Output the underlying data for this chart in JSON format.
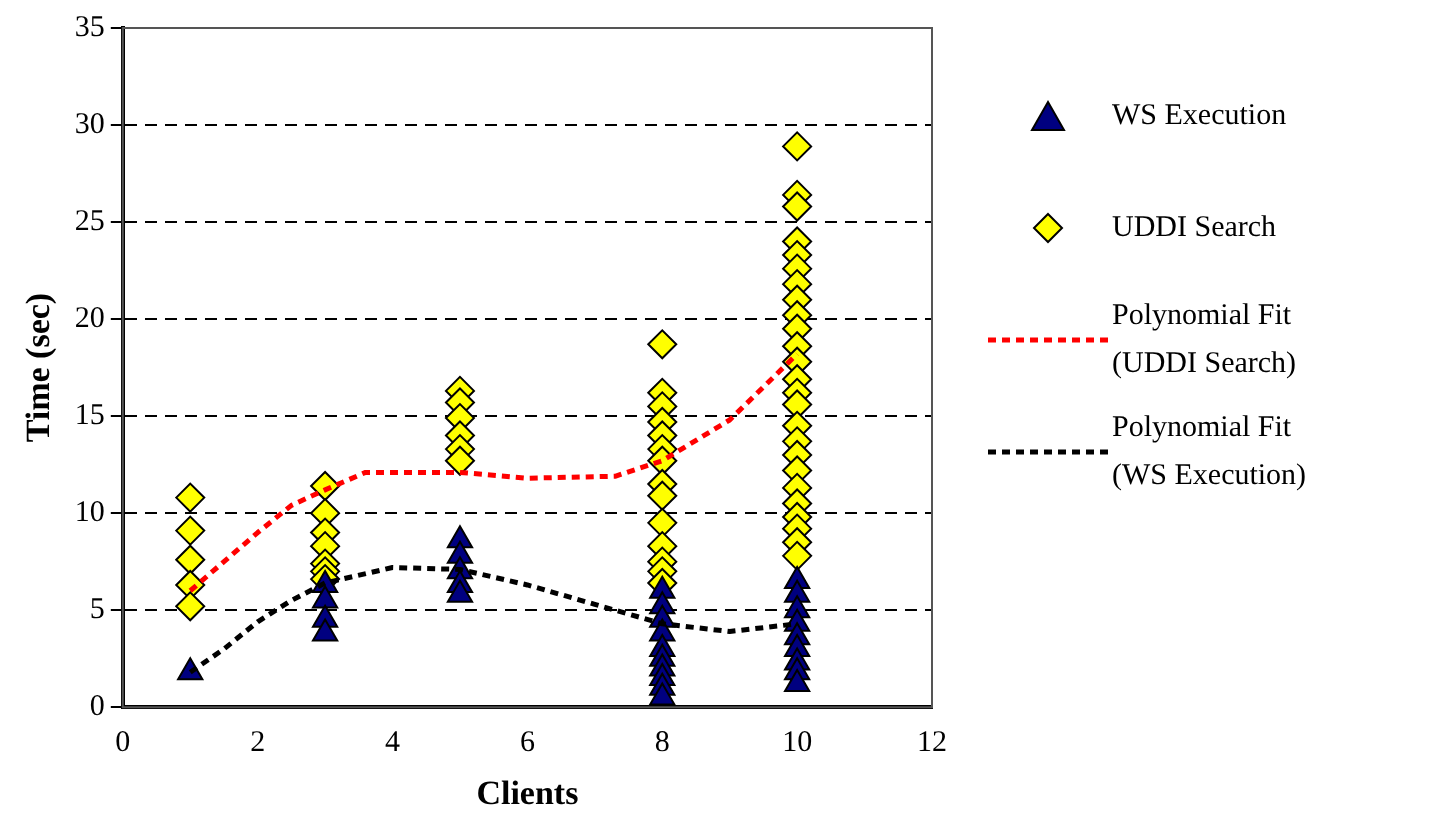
{
  "chart_data": {
    "type": "scatter",
    "xlabel": "Clients",
    "ylabel": "Time (sec)",
    "xlim": [
      0,
      12
    ],
    "xticks": [
      0,
      2,
      4,
      6,
      8,
      10,
      12
    ],
    "ylim": [
      0,
      35
    ],
    "yticks": [
      0,
      5,
      10,
      15,
      20,
      25,
      30,
      35
    ],
    "grid": "y",
    "legend": "right",
    "series": [
      {
        "name": "WS Execution",
        "color": "#000080",
        "marker": "triangle",
        "x": [
          1,
          3,
          3,
          3,
          3,
          5,
          5,
          5,
          5,
          5,
          8,
          8,
          8,
          8,
          8,
          8,
          8,
          8,
          8,
          8,
          10,
          10,
          10,
          10,
          10,
          10,
          10,
          10,
          10
        ],
        "values": [
          1.8,
          6.3,
          5.5,
          4.5,
          3.8,
          8.6,
          7.8,
          7,
          6.3,
          5.8,
          6,
          5.2,
          4.5,
          3.8,
          3,
          2.5,
          2,
          1.5,
          1,
          0.5,
          6.5,
          5.8,
          5,
          4.3,
          3.6,
          3,
          2.3,
          1.8,
          1.2
        ]
      },
      {
        "name": "UDDI Search",
        "color": "#ffff00",
        "marker": "diamond",
        "x": [
          1,
          1,
          1,
          1,
          1,
          3,
          3,
          3,
          3,
          3,
          3,
          3,
          5,
          5,
          5,
          5,
          5,
          5,
          8,
          8,
          8,
          8,
          8,
          8,
          8,
          8,
          8,
          8,
          8,
          8,
          8,
          8,
          10,
          10,
          10,
          10,
          10,
          10,
          10,
          10,
          10,
          10,
          10,
          10,
          10,
          10,
          10,
          10,
          10,
          10,
          10,
          10,
          10,
          10,
          10,
          10,
          10
        ],
        "values": [
          10.8,
          9.1,
          7.6,
          6.3,
          5.2,
          11.4,
          10,
          9,
          8.3,
          7.4,
          7,
          6.6,
          16.3,
          15.7,
          14.9,
          14,
          13.3,
          12.7,
          18.7,
          16.2,
          15.5,
          14.7,
          14,
          13.3,
          12.7,
          11.5,
          10.9,
          9.5,
          8.3,
          7.5,
          7,
          6.4,
          28.9,
          26.4,
          25.8,
          24,
          23.3,
          22.6,
          21.8,
          21,
          20.2,
          19.5,
          18.6,
          17.8,
          16.9,
          16.2,
          15.6,
          14.5,
          13.7,
          13,
          12.2,
          11.3,
          10.5,
          9.8,
          9.2,
          8.5,
          7.8
        ]
      },
      {
        "name": "Polynomial Fit (UDDI Search)",
        "type": "line",
        "color": "#ff0000",
        "marker": "none",
        "line_style": "dashed",
        "x": [
          1,
          1.5,
          2,
          2.5,
          3,
          3.6,
          5,
          6,
          7.3,
          8,
          9,
          10
        ],
        "values": [
          6,
          7.5,
          9,
          10.4,
          11.2,
          12.1,
          12.1,
          11.8,
          11.9,
          12.7,
          14.8,
          18.2
        ]
      },
      {
        "name": "Polynomial Fit (WS Execution)",
        "type": "line",
        "color": "#000000",
        "marker": "none",
        "line_style": "dashed",
        "x": [
          1,
          1.5,
          2,
          2.5,
          3,
          4,
          5,
          6,
          7,
          8,
          9,
          10
        ],
        "values": [
          1.8,
          3,
          4.4,
          5.5,
          6.4,
          7.2,
          7.1,
          6.3,
          5.3,
          4.3,
          3.9,
          4.3
        ]
      }
    ]
  }
}
